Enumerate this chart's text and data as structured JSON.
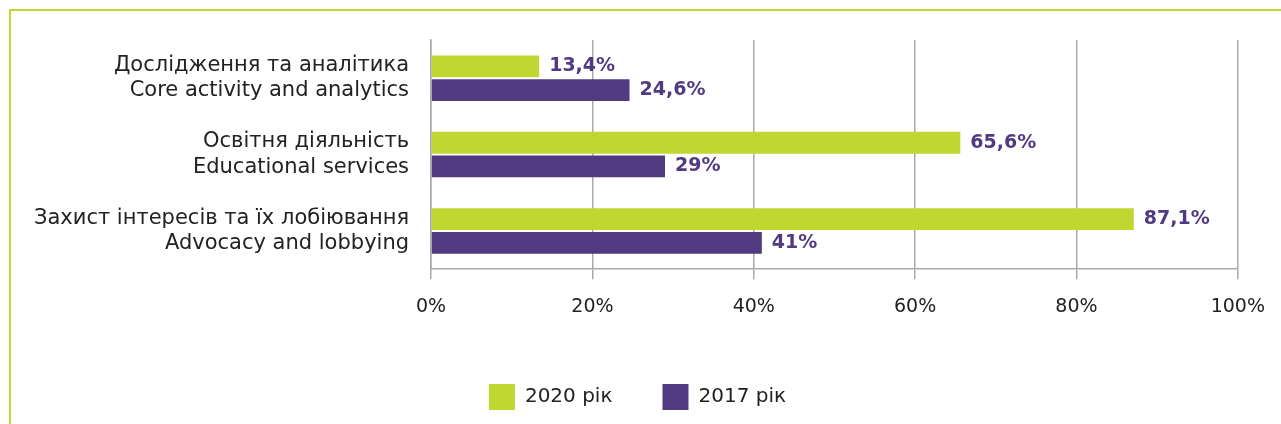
{
  "chart_data": {
    "type": "bar",
    "orientation": "horizontal",
    "categories": [
      "Дослідження та аналітика\nCore activity and analytics",
      "Освітня діяльність\nEducational services",
      "Захист інтересів та їх лобіювання\nAdvocacy and lobbying"
    ],
    "series": [
      {
        "name": "2020 рік",
        "color": "#c0d732",
        "values": [
          13.4,
          65.6,
          87.1
        ],
        "value_labels": [
          "13,4%",
          "65,6%",
          "87,1%"
        ]
      },
      {
        "name": "2017 рік",
        "color": "#523a80",
        "values": [
          24.6,
          29,
          41
        ],
        "value_labels": [
          "24,6%",
          "29%",
          "41%"
        ]
      }
    ],
    "xlim": [
      0,
      100
    ],
    "xticks": [
      {
        "value": 0,
        "label": "0%"
      },
      {
        "value": 20,
        "label": "20%"
      },
      {
        "value": 40,
        "label": "40%"
      },
      {
        "value": 60,
        "label": "60%"
      },
      {
        "value": 80,
        "label": "80%"
      },
      {
        "value": 100,
        "label": "100%"
      }
    ],
    "grid": "x",
    "legend": "bottom"
  }
}
